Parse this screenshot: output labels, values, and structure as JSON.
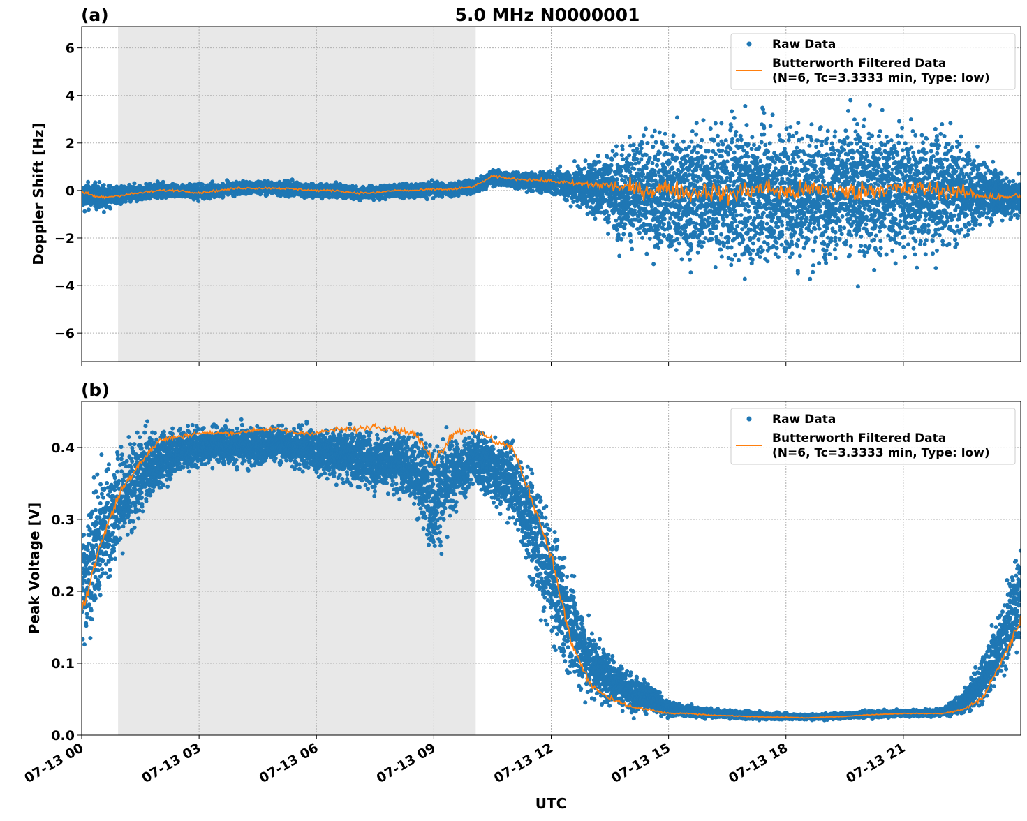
{
  "chart_data": [
    {
      "type": "scatter",
      "panel_label": "(a)",
      "title": "5.0 MHz N0000001",
      "ylabel": "Doppler Shift [Hz]",
      "xlabel": "",
      "xlim_hours_utc": [
        0,
        24
      ],
      "ylim": [
        -7.2,
        6.9
      ],
      "yticks": [
        -6,
        -4,
        -2,
        0,
        2,
        4,
        6
      ],
      "ytick_labels": [
        "−6",
        "−4",
        "−2",
        "0",
        "2",
        "4",
        "6"
      ],
      "grid": true,
      "legend_placement": "top-right",
      "shaded_interval_hours_utc": [
        0.93,
        10.07
      ],
      "shade_color": "#e8e8e8",
      "series": [
        {
          "name": "Raw Data",
          "kind": "points",
          "color": "#1f77b4"
        },
        {
          "name": "Butterworth Filtered Data\n(N=6, Tc=3.3333 min, Type: low)",
          "kind": "line",
          "color": "#ff7f0e"
        }
      ],
      "legend": [
        "Raw Data",
        "Butterworth Filtered Data",
        "(N=6, Tc=3.3333 min, Type: low)"
      ],
      "x_hours": [
        0,
        0.5,
        1,
        1.5,
        2,
        2.5,
        3,
        3.5,
        4,
        4.5,
        5,
        5.5,
        6,
        6.5,
        7,
        7.5,
        8,
        8.5,
        9,
        9.5,
        10,
        10.5,
        11,
        11.5,
        12,
        12.5,
        13,
        13.5,
        14,
        14.5,
        15,
        15.5,
        16,
        16.5,
        17,
        17.5,
        18,
        18.5,
        19,
        19.5,
        20,
        20.5,
        21,
        21.5,
        22,
        22.5,
        23,
        23.5,
        24
      ],
      "filtered": [
        -0.1,
        -0.3,
        -0.2,
        -0.1,
        0,
        0,
        -0.1,
        0,
        0.1,
        0.1,
        0.1,
        0.05,
        0,
        0,
        -0.1,
        -0.1,
        0,
        0,
        0.05,
        0.05,
        0.15,
        0.6,
        0.5,
        0.45,
        0.4,
        0.3,
        0.25,
        0.2,
        0.1,
        0,
        0.1,
        -0.1,
        0,
        -0.2,
        0,
        0.1,
        -0.1,
        0,
        0.1,
        -0.1,
        0,
        0.1,
        0,
        0.1,
        0,
        -0.1,
        -0.2,
        -0.3,
        -0.2
      ],
      "raw_low": [
        -1,
        -1,
        -0.7,
        -0.6,
        -0.4,
        -0.4,
        -0.5,
        -0.4,
        -0.3,
        -0.3,
        -0.3,
        -0.4,
        -0.4,
        -0.4,
        -0.5,
        -0.5,
        -0.4,
        -0.4,
        -0.4,
        -0.4,
        -0.3,
        0.1,
        0,
        -0.2,
        -0.3,
        -0.8,
        -1.5,
        -2.5,
        -3.2,
        -3.5,
        -3.8,
        -4,
        -4,
        -4.2,
        -4.2,
        -4.2,
        -4.3,
        -4.2,
        -4.2,
        -4,
        -4,
        -4,
        -3.8,
        -3.6,
        -3.3,
        -2.8,
        -2,
        -1.6,
        -1.4
      ],
      "raw_high": [
        0.6,
        0.5,
        0.3,
        0.4,
        0.4,
        0.4,
        0.4,
        0.4,
        0.5,
        0.5,
        0.5,
        0.5,
        0.4,
        0.4,
        0.3,
        0.3,
        0.4,
        0.4,
        0.5,
        0.5,
        0.6,
        1,
        0.9,
        0.9,
        1,
        1.3,
        1.8,
        2.5,
        3,
        3.3,
        3.5,
        3.6,
        3.8,
        3.8,
        3.9,
        4,
        4,
        4,
        4,
        4,
        4,
        3.9,
        3.8,
        3.6,
        3.3,
        2.8,
        2,
        1.2,
        0.8
      ]
    },
    {
      "type": "scatter",
      "panel_label": "(b)",
      "title": "",
      "ylabel": "Peak Voltage [V]",
      "xlabel": "UTC",
      "xlim_hours_utc": [
        0,
        24
      ],
      "ylim": [
        0,
        0.464
      ],
      "yticks": [
        0.0,
        0.1,
        0.2,
        0.3,
        0.4
      ],
      "ytick_labels": [
        "0.0",
        "0.1",
        "0.2",
        "0.3",
        "0.4"
      ],
      "xticks_hours": [
        0,
        3,
        6,
        9,
        12,
        15,
        18,
        21
      ],
      "xtick_labels": [
        "07-13 00",
        "07-13 03",
        "07-13 06",
        "07-13 09",
        "07-13 12",
        "07-13 15",
        "07-13 18",
        "07-13 21"
      ],
      "grid": true,
      "legend_placement": "top-right",
      "shaded_interval_hours_utc": [
        0.93,
        10.07
      ],
      "shade_color": "#e8e8e8",
      "series": [
        {
          "name": "Raw Data",
          "kind": "points",
          "color": "#1f77b4"
        },
        {
          "name": "Butterworth Filtered Data\n(N=6, Tc=3.3333 min, Type: low)",
          "kind": "line",
          "color": "#ff7f0e"
        }
      ],
      "legend": [
        "Raw Data",
        "Butterworth Filtered Data",
        "(N=6, Tc=3.3333 min, Type: low)"
      ],
      "x_hours": [
        0,
        0.5,
        1,
        1.5,
        2,
        2.5,
        3,
        3.5,
        4,
        4.5,
        5,
        5.5,
        6,
        6.5,
        7,
        7.5,
        8,
        8.5,
        9,
        9.5,
        10,
        10.5,
        11,
        11.5,
        12,
        12.5,
        13,
        13.5,
        14,
        14.5,
        15,
        15.5,
        16,
        16.5,
        17,
        17.5,
        18,
        18.5,
        19,
        19.5,
        20,
        20.5,
        21,
        21.5,
        22,
        22.5,
        23,
        23.5,
        24
      ],
      "filtered": [
        0.17,
        0.27,
        0.34,
        0.38,
        0.41,
        0.415,
        0.42,
        0.42,
        0.42,
        0.425,
        0.425,
        0.42,
        0.42,
        0.425,
        0.425,
        0.43,
        0.425,
        0.42,
        0.38,
        0.42,
        0.425,
        0.41,
        0.4,
        0.33,
        0.25,
        0.13,
        0.07,
        0.05,
        0.04,
        0.035,
        0.03,
        0.03,
        0.028,
        0.027,
        0.026,
        0.025,
        0.025,
        0.024,
        0.025,
        0.026,
        0.028,
        0.029,
        0.03,
        0.03,
        0.03,
        0.035,
        0.05,
        0.1,
        0.16
      ],
      "raw_low": [
        0.08,
        0.16,
        0.22,
        0.28,
        0.33,
        0.35,
        0.36,
        0.37,
        0.36,
        0.36,
        0.37,
        0.36,
        0.35,
        0.34,
        0.33,
        0.32,
        0.32,
        0.3,
        0.22,
        0.28,
        0.33,
        0.3,
        0.28,
        0.18,
        0.1,
        0.05,
        0.03,
        0.025,
        0.022,
        0.022,
        0.022,
        0.022,
        0.021,
        0.021,
        0.02,
        0.02,
        0.02,
        0.02,
        0.02,
        0.021,
        0.022,
        0.023,
        0.024,
        0.024,
        0.025,
        0.026,
        0.03,
        0.06,
        0.1
      ],
      "raw_high": [
        0.33,
        0.4,
        0.43,
        0.44,
        0.44,
        0.44,
        0.44,
        0.44,
        0.44,
        0.44,
        0.44,
        0.44,
        0.44,
        0.44,
        0.44,
        0.44,
        0.44,
        0.44,
        0.44,
        0.44,
        0.44,
        0.44,
        0.43,
        0.4,
        0.33,
        0.25,
        0.17,
        0.13,
        0.1,
        0.08,
        0.05,
        0.045,
        0.04,
        0.037,
        0.035,
        0.033,
        0.032,
        0.03,
        0.032,
        0.033,
        0.035,
        0.036,
        0.037,
        0.037,
        0.04,
        0.06,
        0.12,
        0.2,
        0.3
      ]
    }
  ]
}
